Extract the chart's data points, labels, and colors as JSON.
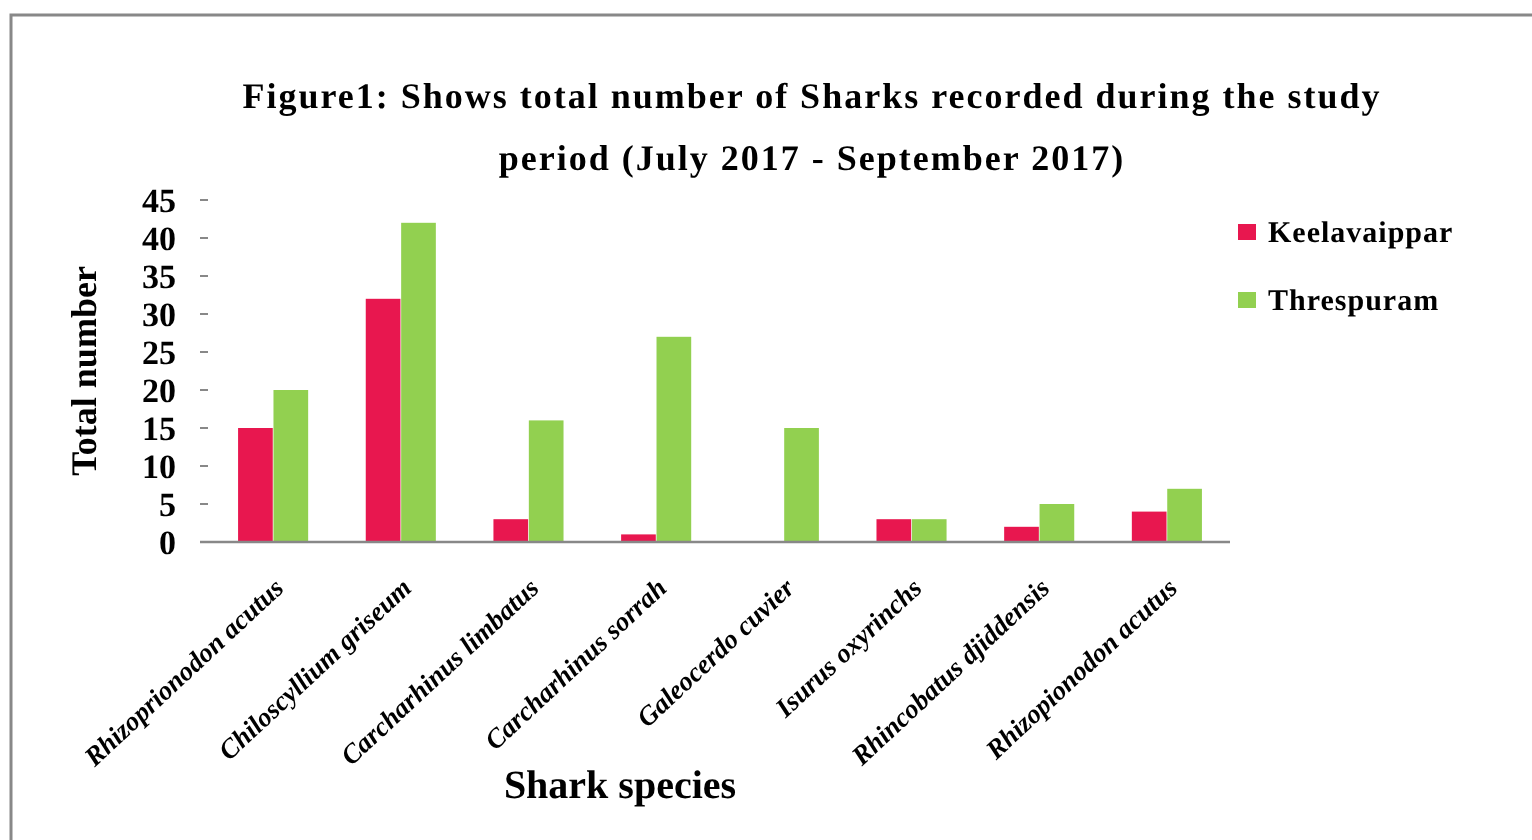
{
  "chart_data": {
    "type": "bar",
    "title": "Figure1: Shows total number of Sharks recorded during the study period (July 2017 - September 2017)",
    "xlabel": "Shark species",
    "ylabel": "Total number",
    "categories": [
      "Rhizoprionodon acutus",
      "Chiloscyllium griseum",
      "Carcharhinus limbatus",
      "Carcharhinus sorrah",
      "Galeocerdo cuvier",
      "Isurus oxyrinchs",
      "Rhincobatus djiddensis",
      "Rhizopionodon acutus"
    ],
    "series": [
      {
        "name": "Keelavaippar",
        "color": "#e8174f",
        "values": [
          15,
          32,
          3,
          1,
          0,
          3,
          2,
          4
        ]
      },
      {
        "name": "Threspuram",
        "color": "#92d050",
        "values": [
          20,
          42,
          16,
          27,
          15,
          3,
          5,
          7
        ]
      }
    ],
    "ylim": [
      0,
      45
    ],
    "yticks": [
      0,
      5,
      10,
      15,
      20,
      25,
      30,
      35,
      40,
      45
    ],
    "grid": false,
    "legend": "right"
  }
}
